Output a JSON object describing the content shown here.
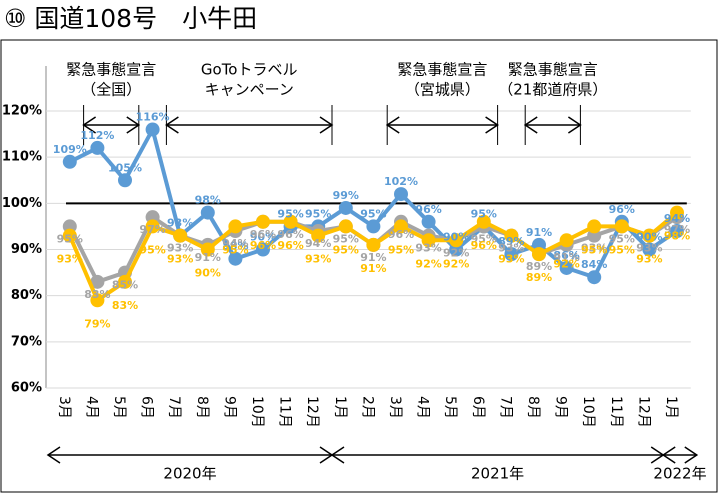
{
  "chart_data": {
    "type": "line",
    "title": "⑩ 国道108号　小牛田",
    "categories": [
      "3月",
      "4月",
      "5月",
      "6月",
      "7月",
      "8月",
      "9月",
      "10月",
      "11月",
      "12月",
      "1月",
      "2月",
      "3月",
      "4月",
      "5月",
      "6月",
      "7月",
      "8月",
      "9月",
      "10月",
      "11月",
      "12月",
      "1月"
    ],
    "series": [
      {
        "color": "#5b9bd5",
        "values": [
          109,
          112,
          105,
          116,
          93,
          98,
          88,
          90,
          95,
          95,
          99,
          95,
          102,
          96,
          90,
          95,
          89,
          91,
          86,
          84,
          96,
          90,
          94
        ],
        "value_labels": [
          "109%",
          "112%",
          "105%",
          "116%",
          "93%",
          "98%",
          "88%",
          "90%",
          "95%",
          "95%",
          "99%",
          "95%",
          "102%",
          "96%",
          "90%",
          "95%",
          "89%",
          "91%",
          "86%",
          "84%",
          "96%",
          "90%",
          "94%"
        ]
      },
      {
        "color": "#a5a5a5",
        "values": [
          95,
          83,
          85,
          97,
          93,
          91,
          94,
          96,
          96,
          94,
          95,
          91,
          96,
          93,
          92,
          95,
          93,
          89,
          91,
          93,
          95,
          93,
          97
        ],
        "value_labels": [
          "95%",
          "83%",
          "85%",
          "97%",
          "93%",
          "91%",
          "94%",
          "96%",
          "96%",
          "94%",
          "95%",
          "91%",
          "96%",
          "93%",
          "92%",
          "95%",
          "93%",
          "89%",
          "91%",
          "93%",
          "95%",
          "93%",
          "97%"
        ]
      },
      {
        "color": "#ffc000",
        "values": [
          93,
          79,
          83,
          95,
          93,
          90,
          95,
          96,
          96,
          93,
          95,
          91,
          95,
          92,
          92,
          96,
          93,
          89,
          92,
          95,
          95,
          93,
          98
        ],
        "value_labels": [
          "93%",
          "79%",
          "83%",
          "95%",
          "93%",
          "90%",
          "95%",
          "96%",
          "96%",
          "93%",
          "95%",
          "91%",
          "95%",
          "92%",
          "92%",
          "96%",
          "93%",
          "89%",
          "92%",
          "95%",
          "95%",
          "93%",
          "98%"
        ]
      }
    ],
    "ylim": [
      60,
      120
    ],
    "yticks": [
      {
        "value": 60,
        "label": "60%"
      },
      {
        "value": 70,
        "label": "70%"
      },
      {
        "value": 80,
        "label": "80%"
      },
      {
        "value": 90,
        "label": "90%"
      },
      {
        "value": 100,
        "label": "100%"
      },
      {
        "value": 110,
        "label": "110%"
      },
      {
        "value": 120,
        "label": "120%"
      }
    ],
    "reference_line": 100,
    "annotations": [
      "緊急事態宣言",
      "（全国）",
      "GoToトラベル",
      "キャンペーン",
      "緊急事態宣言",
      "（宮城県）",
      "緊急事態宣言",
      "（21都道府県）"
    ],
    "years": [
      "2020年",
      "2021年",
      "2022年"
    ],
    "grid": true
  }
}
